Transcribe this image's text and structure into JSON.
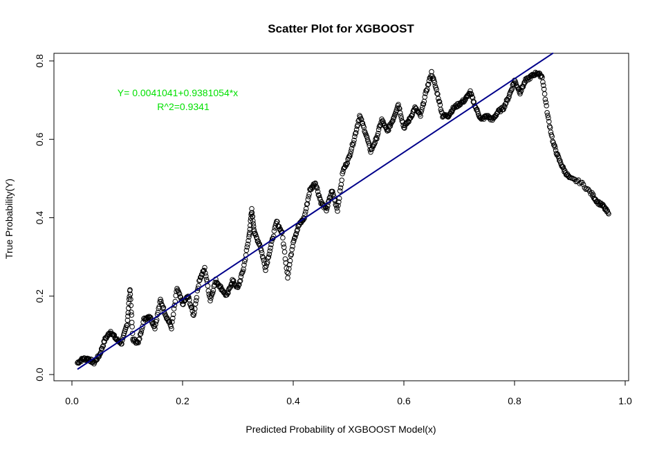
{
  "chart_data": {
    "type": "scatter",
    "title": "Scatter Plot for XGBOOST",
    "xlabel": "Predicted Probability of XGBOOST Model(x)",
    "ylabel": "True Probability(Y)",
    "xlim": [
      0.0,
      1.0
    ],
    "ylim": [
      0.0,
      0.8
    ],
    "xticks": [
      "0.0",
      "0.2",
      "0.4",
      "0.6",
      "0.8",
      "1.0"
    ],
    "yticks": [
      "0.0",
      "0.2",
      "0.4",
      "0.6",
      "0.8"
    ],
    "grid": false,
    "annotations": {
      "equation": "Y= 0.0041041+0.9381054*x",
      "r_squared": "R^2=0.9341",
      "color": "#00e000"
    },
    "fit_line": {
      "intercept": 0.0041041,
      "slope": 0.9381054,
      "x_range": [
        0.01,
        0.87
      ],
      "color": "#00008b"
    },
    "series_curve": [
      [
        0.01,
        0.03
      ],
      [
        0.02,
        0.04
      ],
      [
        0.03,
        0.04
      ],
      [
        0.04,
        0.03
      ],
      [
        0.05,
        0.05
      ],
      [
        0.06,
        0.09
      ],
      [
        0.07,
        0.11
      ],
      [
        0.08,
        0.09
      ],
      [
        0.09,
        0.08
      ],
      [
        0.1,
        0.13
      ],
      [
        0.105,
        0.22
      ],
      [
        0.11,
        0.09
      ],
      [
        0.12,
        0.08
      ],
      [
        0.13,
        0.14
      ],
      [
        0.14,
        0.15
      ],
      [
        0.15,
        0.12
      ],
      [
        0.16,
        0.19
      ],
      [
        0.17,
        0.15
      ],
      [
        0.18,
        0.12
      ],
      [
        0.19,
        0.22
      ],
      [
        0.2,
        0.18
      ],
      [
        0.21,
        0.2
      ],
      [
        0.22,
        0.15
      ],
      [
        0.23,
        0.24
      ],
      [
        0.24,
        0.27
      ],
      [
        0.25,
        0.19
      ],
      [
        0.26,
        0.24
      ],
      [
        0.27,
        0.22
      ],
      [
        0.28,
        0.2
      ],
      [
        0.29,
        0.24
      ],
      [
        0.3,
        0.22
      ],
      [
        0.31,
        0.27
      ],
      [
        0.32,
        0.35
      ],
      [
        0.325,
        0.42
      ],
      [
        0.33,
        0.36
      ],
      [
        0.34,
        0.33
      ],
      [
        0.35,
        0.27
      ],
      [
        0.36,
        0.33
      ],
      [
        0.37,
        0.39
      ],
      [
        0.38,
        0.36
      ],
      [
        0.39,
        0.25
      ],
      [
        0.4,
        0.34
      ],
      [
        0.41,
        0.38
      ],
      [
        0.42,
        0.4
      ],
      [
        0.43,
        0.47
      ],
      [
        0.44,
        0.49
      ],
      [
        0.45,
        0.44
      ],
      [
        0.46,
        0.42
      ],
      [
        0.47,
        0.47
      ],
      [
        0.48,
        0.42
      ],
      [
        0.49,
        0.52
      ],
      [
        0.5,
        0.55
      ],
      [
        0.51,
        0.6
      ],
      [
        0.52,
        0.66
      ],
      [
        0.53,
        0.62
      ],
      [
        0.54,
        0.57
      ],
      [
        0.55,
        0.6
      ],
      [
        0.56,
        0.65
      ],
      [
        0.57,
        0.62
      ],
      [
        0.58,
        0.65
      ],
      [
        0.59,
        0.69
      ],
      [
        0.6,
        0.63
      ],
      [
        0.61,
        0.65
      ],
      [
        0.62,
        0.68
      ],
      [
        0.63,
        0.66
      ],
      [
        0.64,
        0.72
      ],
      [
        0.65,
        0.77
      ],
      [
        0.66,
        0.72
      ],
      [
        0.67,
        0.66
      ],
      [
        0.68,
        0.66
      ],
      [
        0.69,
        0.68
      ],
      [
        0.7,
        0.69
      ],
      [
        0.71,
        0.7
      ],
      [
        0.72,
        0.72
      ],
      [
        0.73,
        0.68
      ],
      [
        0.74,
        0.65
      ],
      [
        0.75,
        0.66
      ],
      [
        0.76,
        0.65
      ],
      [
        0.77,
        0.67
      ],
      [
        0.78,
        0.68
      ],
      [
        0.79,
        0.71
      ],
      [
        0.8,
        0.75
      ],
      [
        0.81,
        0.72
      ],
      [
        0.82,
        0.75
      ],
      [
        0.83,
        0.76
      ],
      [
        0.84,
        0.77
      ],
      [
        0.85,
        0.76
      ],
      [
        0.86,
        0.66
      ],
      [
        0.87,
        0.59
      ],
      [
        0.88,
        0.55
      ],
      [
        0.89,
        0.52
      ],
      [
        0.9,
        0.5
      ],
      [
        0.92,
        0.49
      ],
      [
        0.94,
        0.46
      ],
      [
        0.95,
        0.44
      ],
      [
        0.96,
        0.43
      ],
      [
        0.97,
        0.41
      ]
    ]
  }
}
